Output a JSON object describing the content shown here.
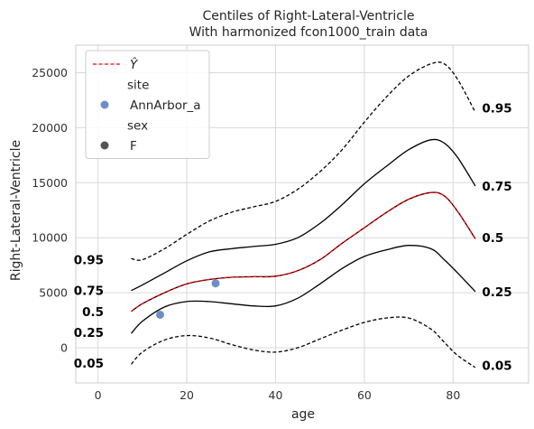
{
  "chart_data": {
    "type": "line",
    "title": "Centiles of Right-Lateral-Ventricle",
    "subtitle": "With harmonized fcon1000_train data",
    "xlabel": "age",
    "ylabel": "Right-Lateral-Ventricle",
    "xlim": [
      -5,
      97
    ],
    "ylim": [
      -3200,
      27500
    ],
    "xticks": [
      0,
      20,
      40,
      60,
      80
    ],
    "yticks": [
      0,
      5000,
      10000,
      15000,
      20000,
      25000
    ],
    "grid": true,
    "legend_position": "top-left",
    "legend": [
      {
        "kind": "line",
        "label": "Ŷ",
        "color": "#ff0000"
      },
      {
        "kind": "header",
        "label": "site"
      },
      {
        "kind": "marker",
        "label": "AnnArbor_a",
        "color": "#6c8fc9"
      },
      {
        "kind": "header",
        "label": "sex"
      },
      {
        "kind": "marker",
        "label": "F",
        "color": "#555555"
      }
    ],
    "x": [
      7.5,
      10,
      15,
      20,
      25,
      30,
      35,
      40,
      45,
      50,
      55,
      60,
      65,
      70,
      75,
      78,
      81,
      85
    ],
    "series": [
      {
        "centile": "0.05",
        "dashed": true,
        "color": "#000000",
        "values": [
          -1500,
          -400,
          700,
          1100,
          900,
          300,
          -200,
          -400,
          0,
          800,
          1600,
          2300,
          2700,
          2700,
          1700,
          500,
          -700,
          -1800
        ]
      },
      {
        "centile": "0.25",
        "dashed": false,
        "color": "#000000",
        "values": [
          1300,
          2400,
          3700,
          4200,
          4200,
          4000,
          3800,
          3800,
          4500,
          5800,
          7200,
          8300,
          8900,
          9300,
          9000,
          8000,
          6800,
          5100
        ]
      },
      {
        "centile": "0.5",
        "dashed": false,
        "color": "#000000",
        "values": [
          3300,
          4000,
          5000,
          5800,
          6200,
          6400,
          6450,
          6500,
          7000,
          8000,
          9500,
          10900,
          12300,
          13500,
          14100,
          13800,
          12400,
          9900
        ]
      },
      {
        "centile": "0.75",
        "dashed": false,
        "color": "#000000",
        "values": [
          5200,
          5700,
          6800,
          7900,
          8700,
          9000,
          9200,
          9400,
          10000,
          11300,
          13000,
          14900,
          16500,
          18000,
          18900,
          18600,
          17300,
          14700
        ]
      },
      {
        "centile": "0.95",
        "dashed": true,
        "color": "#000000",
        "values": [
          8100,
          8000,
          9000,
          10300,
          11500,
          12300,
          12800,
          13300,
          14400,
          16000,
          18000,
          20500,
          22800,
          24700,
          25800,
          25800,
          24400,
          21400
        ]
      }
    ],
    "prediction": {
      "label": "Ŷ",
      "color": "#ff0000",
      "dashed": true,
      "values": [
        3300,
        4000,
        5000,
        5800,
        6200,
        6400,
        6450,
        6500,
        7000,
        8000,
        9500,
        10900,
        12300,
        13500,
        14100,
        13800,
        12400,
        9900
      ]
    },
    "points": [
      {
        "x": 14,
        "y": 3000,
        "site": "AnnArbor_a",
        "sex": "F"
      },
      {
        "x": 26.5,
        "y": 5850,
        "site": "AnnArbor_a",
        "sex": "F"
      }
    ],
    "labels_left": [
      {
        "text": "0.95",
        "y": 8000
      },
      {
        "text": "0.75",
        "y": 5200
      },
      {
        "text": "0.5",
        "y": 3300
      },
      {
        "text": "0.25",
        "y": 1400
      },
      {
        "text": "0.05",
        "y": -1400
      }
    ],
    "labels_right": [
      {
        "text": "0.95",
        "y": 21800
      },
      {
        "text": "0.75",
        "y": 14700
      },
      {
        "text": "0.5",
        "y": 10000
      },
      {
        "text": "0.25",
        "y": 5100
      },
      {
        "text": "0.05",
        "y": -1600
      }
    ]
  }
}
